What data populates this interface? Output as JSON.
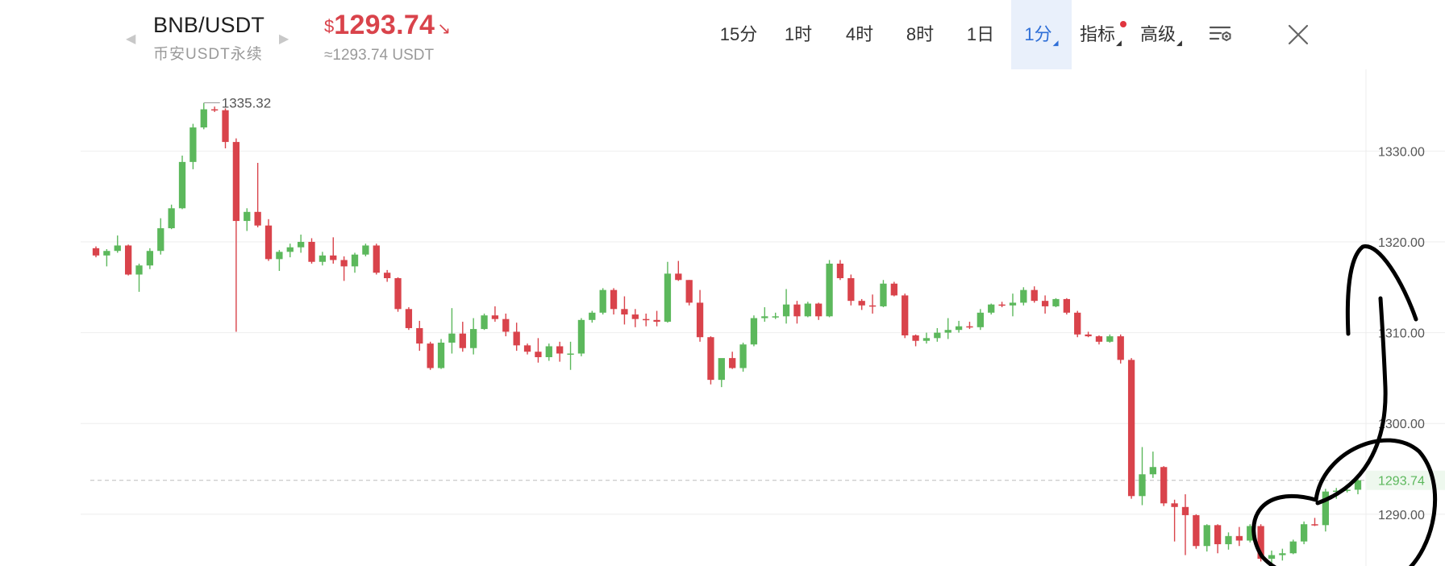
{
  "header": {
    "symbol": "BNB/USDT",
    "subtitle": "币安USDT永续",
    "price_currency": "$",
    "price": "1293.74",
    "price_direction_icon": "down-right-arrow-icon",
    "price_converted": "≈1293.74 USDT",
    "price_color": "#d9434b"
  },
  "toolbar": {
    "intervals": [
      "15分",
      "1时",
      "4时",
      "8时",
      "1日",
      "1分"
    ],
    "active_interval": "1分",
    "indicators_label": "指标",
    "advanced_label": "高级",
    "settings_icon": "chart-settings-icon",
    "close_icon": "close-icon",
    "accent": "#2f6fd7"
  },
  "chart_data": {
    "type": "candlestick",
    "up_color": "#5cb85c",
    "down_color": "#d9434b",
    "y_axis": {
      "ticks": [
        1330,
        1320,
        1310,
        1300,
        1290
      ],
      "tick_labels": [
        "1330.00",
        "1320.00",
        "1310.00",
        "1300.00",
        "1290.00"
      ],
      "ylim": [
        1284.3,
        1339.0
      ]
    },
    "grid": true,
    "current_price": {
      "value": 1293.74,
      "label": "1293.74"
    },
    "max_label": {
      "value": 1335.32,
      "label": "1335.32"
    },
    "candles": [
      [
        1319.3,
        1319.5,
        1318.3,
        1318.5
      ],
      [
        1318.5,
        1319.2,
        1317.3,
        1319.0
      ],
      [
        1319.0,
        1320.7,
        1318.8,
        1319.6
      ],
      [
        1319.6,
        1319.7,
        1316.3,
        1316.4
      ],
      [
        1316.4,
        1317.6,
        1314.5,
        1317.4
      ],
      [
        1317.4,
        1319.3,
        1317.0,
        1319.0
      ],
      [
        1319.0,
        1322.6,
        1318.6,
        1321.5
      ],
      [
        1321.5,
        1324.1,
        1321.4,
        1323.7
      ],
      [
        1323.7,
        1329.5,
        1323.6,
        1328.8
      ],
      [
        1328.8,
        1333.0,
        1328.0,
        1332.6
      ],
      [
        1332.6,
        1335.3,
        1332.4,
        1334.6
      ],
      [
        1334.6,
        1334.9,
        1334.3,
        1334.5
      ],
      [
        1334.5,
        1334.7,
        1330.3,
        1331.0
      ],
      [
        1331.0,
        1331.4,
        1310.1,
        1322.3
      ],
      [
        1322.3,
        1323.7,
        1321.2,
        1323.3
      ],
      [
        1323.3,
        1328.7,
        1321.6,
        1321.8
      ],
      [
        1321.8,
        1322.5,
        1317.9,
        1318.1
      ],
      [
        1318.1,
        1319.1,
        1316.8,
        1318.9
      ],
      [
        1318.9,
        1319.8,
        1318.3,
        1319.4
      ],
      [
        1319.4,
        1320.8,
        1318.8,
        1320.0
      ],
      [
        1320.0,
        1320.4,
        1317.6,
        1317.8
      ],
      [
        1317.8,
        1318.9,
        1317.4,
        1318.5
      ],
      [
        1318.5,
        1320.5,
        1317.6,
        1318.0
      ],
      [
        1318.0,
        1318.4,
        1315.7,
        1317.3
      ],
      [
        1317.3,
        1318.8,
        1316.6,
        1318.6
      ],
      [
        1318.6,
        1319.8,
        1318.4,
        1319.6
      ],
      [
        1319.6,
        1319.8,
        1316.4,
        1316.6
      ],
      [
        1316.6,
        1316.9,
        1315.6,
        1316.0
      ],
      [
        1316.0,
        1316.1,
        1312.3,
        1312.6
      ],
      [
        1312.6,
        1312.8,
        1310.3,
        1310.5
      ],
      [
        1310.5,
        1311.3,
        1308.0,
        1308.8
      ],
      [
        1308.8,
        1309.0,
        1305.9,
        1306.1
      ],
      [
        1306.1,
        1309.3,
        1306.0,
        1308.9
      ],
      [
        1308.9,
        1312.7,
        1307.7,
        1309.9
      ],
      [
        1309.9,
        1311.2,
        1307.9,
        1308.3
      ],
      [
        1308.3,
        1311.6,
        1307.6,
        1310.4
      ],
      [
        1310.4,
        1312.1,
        1310.3,
        1311.9
      ],
      [
        1311.9,
        1312.9,
        1311.2,
        1311.5
      ],
      [
        1311.5,
        1312.1,
        1309.6,
        1310.1
      ],
      [
        1310.1,
        1311.1,
        1308.0,
        1308.6
      ],
      [
        1308.6,
        1308.8,
        1307.6,
        1307.9
      ],
      [
        1307.9,
        1309.4,
        1306.7,
        1307.3
      ],
      [
        1307.3,
        1308.8,
        1306.9,
        1308.5
      ],
      [
        1308.5,
        1309.0,
        1306.8,
        1307.7
      ],
      [
        1307.7,
        1309.0,
        1305.9,
        1307.7
      ],
      [
        1307.7,
        1311.6,
        1307.4,
        1311.4
      ],
      [
        1311.4,
        1312.4,
        1311.1,
        1312.2
      ],
      [
        1312.2,
        1314.9,
        1312.0,
        1314.7
      ],
      [
        1314.7,
        1314.9,
        1312.0,
        1312.6
      ],
      [
        1312.6,
        1314.0,
        1310.9,
        1312.0
      ],
      [
        1312.0,
        1312.6,
        1310.6,
        1311.5
      ],
      [
        1311.5,
        1312.1,
        1310.7,
        1311.4
      ],
      [
        1311.4,
        1312.4,
        1310.7,
        1311.2
      ],
      [
        1311.2,
        1317.8,
        1311.1,
        1316.5
      ],
      [
        1316.5,
        1317.9,
        1315.7,
        1315.8
      ],
      [
        1315.8,
        1315.8,
        1313.0,
        1313.3
      ],
      [
        1313.3,
        1314.7,
        1309.0,
        1309.5
      ],
      [
        1309.5,
        1309.6,
        1304.3,
        1304.8
      ],
      [
        1304.8,
        1307.0,
        1304.0,
        1307.2
      ],
      [
        1307.2,
        1307.9,
        1306.0,
        1306.1
      ],
      [
        1306.1,
        1308.9,
        1305.7,
        1308.7
      ],
      [
        1308.7,
        1311.9,
        1308.5,
        1311.6
      ],
      [
        1311.6,
        1312.8,
        1311.2,
        1311.8
      ],
      [
        1311.8,
        1312.2,
        1311.5,
        1311.8
      ],
      [
        1311.8,
        1314.8,
        1311.0,
        1313.1
      ],
      [
        1313.1,
        1313.5,
        1311.0,
        1311.8
      ],
      [
        1311.8,
        1313.4,
        1311.7,
        1313.2
      ],
      [
        1313.2,
        1313.3,
        1311.4,
        1311.8
      ],
      [
        1311.8,
        1318.0,
        1311.7,
        1317.6
      ],
      [
        1317.6,
        1318.0,
        1315.8,
        1316.0
      ],
      [
        1316.0,
        1316.4,
        1313.0,
        1313.5
      ],
      [
        1313.5,
        1313.7,
        1312.5,
        1313.0
      ],
      [
        1313.0,
        1314.2,
        1312.1,
        1312.9
      ],
      [
        1312.9,
        1315.8,
        1312.8,
        1315.4
      ],
      [
        1315.4,
        1315.6,
        1314.0,
        1314.1
      ],
      [
        1314.1,
        1314.3,
        1309.4,
        1309.7
      ],
      [
        1309.7,
        1309.8,
        1308.5,
        1309.1
      ],
      [
        1309.1,
        1310.0,
        1308.8,
        1309.4
      ],
      [
        1309.4,
        1310.5,
        1309.0,
        1310.0
      ],
      [
        1310.0,
        1311.6,
        1309.3,
        1310.3
      ],
      [
        1310.3,
        1311.3,
        1310.0,
        1310.7
      ],
      [
        1310.7,
        1311.2,
        1310.4,
        1310.6
      ],
      [
        1310.6,
        1312.6,
        1310.3,
        1312.2
      ],
      [
        1312.2,
        1313.2,
        1312.0,
        1313.1
      ],
      [
        1313.1,
        1313.4,
        1312.8,
        1313.0
      ],
      [
        1313.0,
        1314.3,
        1311.8,
        1313.3
      ],
      [
        1313.3,
        1315.0,
        1313.0,
        1314.7
      ],
      [
        1314.7,
        1315.1,
        1313.3,
        1313.5
      ],
      [
        1313.5,
        1314.1,
        1312.1,
        1312.9
      ],
      [
        1312.9,
        1313.8,
        1312.8,
        1313.7
      ],
      [
        1313.7,
        1313.8,
        1312.0,
        1312.2
      ],
      [
        1312.2,
        1312.4,
        1309.5,
        1309.8
      ],
      [
        1309.8,
        1310.1,
        1309.5,
        1309.6
      ],
      [
        1309.6,
        1309.7,
        1308.7,
        1309.0
      ],
      [
        1309.0,
        1309.8,
        1308.9,
        1309.6
      ],
      [
        1309.6,
        1309.8,
        1306.6,
        1307.0
      ],
      [
        1307.0,
        1307.2,
        1291.7,
        1292.0
      ],
      [
        1292.0,
        1297.4,
        1291.0,
        1294.4
      ],
      [
        1294.4,
        1296.9,
        1294.0,
        1295.2
      ],
      [
        1295.2,
        1295.3,
        1290.9,
        1291.2
      ],
      [
        1291.2,
        1291.6,
        1287.0,
        1290.8
      ],
      [
        1290.8,
        1292.2,
        1285.5,
        1289.9
      ],
      [
        1289.9,
        1290.0,
        1286.2,
        1286.5
      ],
      [
        1286.5,
        1288.9,
        1285.9,
        1288.8
      ],
      [
        1288.8,
        1288.9,
        1285.7,
        1286.7
      ],
      [
        1286.7,
        1288.0,
        1286.1,
        1287.6
      ],
      [
        1287.6,
        1288.6,
        1286.5,
        1287.1
      ],
      [
        1287.1,
        1288.9,
        1286.9,
        1288.7
      ],
      [
        1288.7,
        1288.9,
        1284.8,
        1285.1
      ],
      [
        1285.1,
        1286.0,
        1284.5,
        1285.5
      ],
      [
        1285.5,
        1286.2,
        1284.9,
        1285.7
      ],
      [
        1285.7,
        1287.2,
        1285.6,
        1287.0
      ],
      [
        1287.0,
        1289.2,
        1286.7,
        1288.9
      ],
      [
        1288.9,
        1289.6,
        1288.7,
        1288.8
      ],
      [
        1288.8,
        1292.8,
        1288.1,
        1292.5
      ],
      [
        1292.5,
        1292.9,
        1291.7,
        1292.6
      ],
      [
        1292.6,
        1293.0,
        1292.4,
        1292.7
      ],
      [
        1292.7,
        1294.1,
        1292.2,
        1293.74
      ]
    ]
  },
  "annotation": {
    "description_icon": "hand-drawn-circle-and-arrow"
  }
}
